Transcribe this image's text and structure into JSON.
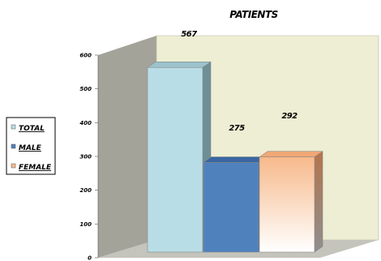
{
  "chart_data": {
    "type": "bar",
    "title": "PATIENTS",
    "categories": [
      "TOTAL",
      "MALE",
      "FEMALE"
    ],
    "values": [
      567,
      275,
      292
    ],
    "data_labels": [
      "567",
      "275",
      "292"
    ],
    "ylim": [
      0,
      600
    ],
    "yticks": [
      "0",
      "100",
      "200",
      "300",
      "400",
      "500",
      "600"
    ],
    "grid": false,
    "three_d": true,
    "legend": {
      "placement": "left",
      "entries": [
        {
          "label": "TOTAL",
          "color": "#b9dde6"
        },
        {
          "label": "MALE",
          "color": "#4f81bd"
        },
        {
          "label": "FEMALE",
          "color": "#f7b98b"
        }
      ]
    },
    "colors": {
      "back_wall": "#eeeed4",
      "side_wall": "#a3a39a",
      "floor": "#c4c4bc",
      "bar_total": "#b9dde6",
      "bar_male": "#4f81bd",
      "bar_female": "#f7b98b"
    }
  }
}
